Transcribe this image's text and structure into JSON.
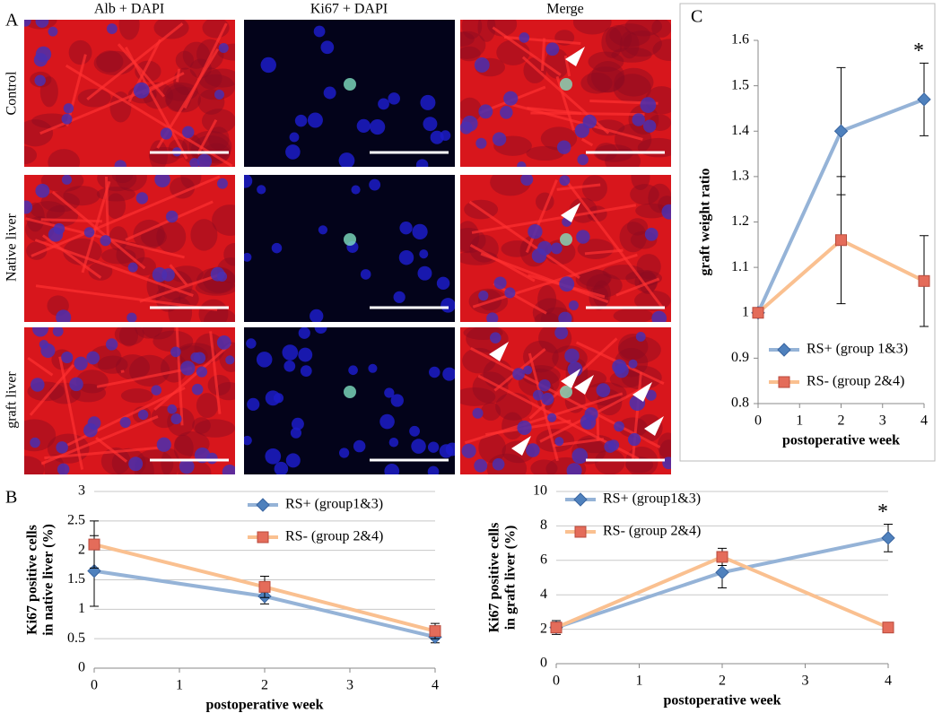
{
  "figure": {
    "panel_labels": [
      "A",
      "B",
      "C"
    ],
    "column_headers": [
      "Alb + DAPI",
      "Ki67 + DAPI",
      "Merge"
    ],
    "row_labels": [
      "Control",
      "Native liver",
      "graft liver"
    ]
  },
  "chart_data": [
    {
      "type": "line",
      "ylabel": "graft weight ratio",
      "xlabel": "postoperative week",
      "x": [
        0,
        2,
        4
      ],
      "xlim": [
        0,
        4
      ],
      "xticks": [
        0,
        1,
        2,
        3,
        4
      ],
      "ylim": [
        0.8,
        1.6
      ],
      "yticks": [
        0.8,
        0.9,
        1,
        1.1,
        1.2,
        1.3,
        1.4,
        1.5,
        1.6
      ],
      "grid": false,
      "legend": "lower-left",
      "annotation": "*",
      "series": [
        {
          "name": "RS+ (group 1&3)",
          "color": "#95b3d7",
          "marker_color": "#4f81bd",
          "marker": "diamond",
          "values": [
            1,
            1.4,
            1.47
          ],
          "errors": [
            0,
            0.14,
            0.08
          ]
        },
        {
          "name": "RS- (group 2&4)",
          "color": "#fac090",
          "marker_color": "#e46c5a",
          "marker": "square",
          "values": [
            1,
            1.16,
            1.07
          ],
          "errors": [
            0,
            0.14,
            0.1
          ]
        }
      ]
    },
    {
      "type": "line",
      "ylabel": [
        "Ki67 positive cells",
        "in native liver (%)"
      ],
      "xlabel": "postoperative week",
      "x": [
        0,
        2,
        4
      ],
      "xlim": [
        0,
        4
      ],
      "xticks": [
        0,
        1,
        2,
        3,
        4
      ],
      "ylim": [
        0,
        3
      ],
      "yticks": [
        0,
        0.5,
        1,
        1.5,
        2,
        2.5,
        3
      ],
      "grid": true,
      "legend": "upper-right",
      "series": [
        {
          "name": "RS+ (group1&3)",
          "color": "#95b3d7",
          "marker_color": "#4f81bd",
          "marker": "diamond",
          "values": [
            1.65,
            1.22,
            0.53
          ],
          "errors": [
            0.6,
            0.13,
            0.1
          ]
        },
        {
          "name": "RS- (group 2&4)",
          "color": "#fac090",
          "marker_color": "#e46c5a",
          "marker": "square",
          "values": [
            2.1,
            1.38,
            0.63
          ],
          "errors": [
            0.4,
            0.18,
            0.13
          ]
        }
      ]
    },
    {
      "type": "line",
      "ylabel": [
        "Ki67 positive cells",
        "in graft liver (%)"
      ],
      "xlabel": "postoperative week",
      "x": [
        0,
        2,
        4
      ],
      "xlim": [
        0,
        4
      ],
      "xticks": [
        0,
        1,
        2,
        3,
        4
      ],
      "ylim": [
        0,
        10
      ],
      "yticks": [
        0,
        2,
        4,
        6,
        8,
        10
      ],
      "grid": true,
      "legend": "upper-left",
      "annotation": "*",
      "series": [
        {
          "name": "RS+ (group1&3)",
          "color": "#95b3d7",
          "marker_color": "#4f81bd",
          "marker": "diamond",
          "values": [
            2.1,
            5.3,
            7.3
          ],
          "errors": [
            0.4,
            0.9,
            0.8
          ]
        },
        {
          "name": "RS- (group 2&4)",
          "color": "#fac090",
          "marker_color": "#e46c5a",
          "marker": "square",
          "values": [
            2.1,
            6.2,
            2.1
          ],
          "errors": [
            0.3,
            0.5,
            0.2
          ]
        }
      ]
    }
  ]
}
